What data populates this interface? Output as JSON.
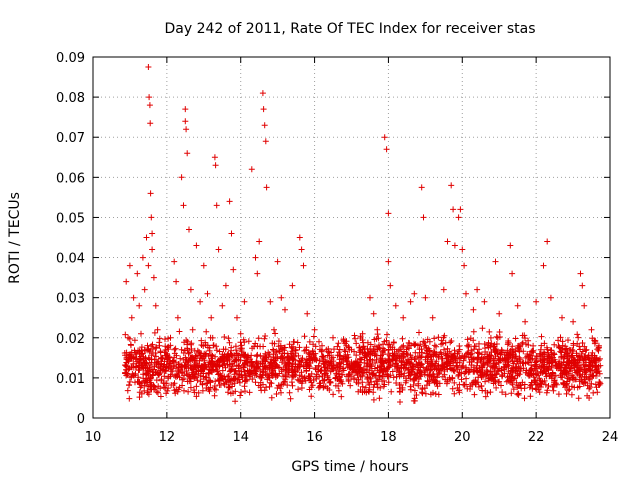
{
  "chart_data": {
    "type": "scatter",
    "title": "Day 242 of 2011, Rate Of TEC Index for receiver stas",
    "xlabel": "GPS time / hours",
    "ylabel": "ROTI / TECUs",
    "xlim": [
      10,
      24
    ],
    "ylim": [
      0,
      0.09
    ],
    "xticks": [
      10,
      12,
      14,
      16,
      18,
      20,
      22,
      24
    ],
    "xtick_labels": [
      "10",
      "12",
      "14",
      "16",
      "18",
      "20",
      "22",
      "24"
    ],
    "yticks": [
      0,
      0.01,
      0.02,
      0.03,
      0.04,
      0.05,
      0.06,
      0.07,
      0.08,
      0.09
    ],
    "ytick_labels": [
      "0",
      "0.01",
      "0.02",
      "0.03",
      "0.04",
      "0.05",
      "0.06",
      "0.07",
      "0.08",
      "0.09"
    ],
    "grid": true,
    "marker": "+",
    "color": "#e00000",
    "series": [
      {
        "points": [
          [
            10.9,
            0.034
          ],
          [
            10.9,
            0.012
          ],
          [
            10.95,
            0.02
          ],
          [
            11.0,
            0.038
          ],
          [
            11.0,
            0.009
          ],
          [
            11.05,
            0.025
          ],
          [
            11.1,
            0.03
          ],
          [
            11.1,
            0.015
          ],
          [
            11.15,
            0.011
          ],
          [
            11.2,
            0.036
          ],
          [
            11.25,
            0.028
          ],
          [
            11.3,
            0.021
          ],
          [
            11.35,
            0.04
          ],
          [
            11.4,
            0.032
          ],
          [
            11.45,
            0.045
          ],
          [
            11.5,
            0.038
          ],
          [
            11.5,
            0.0875
          ],
          [
            11.52,
            0.08
          ],
          [
            11.54,
            0.078
          ],
          [
            11.55,
            0.0735
          ],
          [
            11.56,
            0.056
          ],
          [
            11.58,
            0.05
          ],
          [
            11.6,
            0.046
          ],
          [
            11.6,
            0.042
          ],
          [
            11.65,
            0.035
          ],
          [
            11.7,
            0.028
          ],
          [
            11.75,
            0.022
          ],
          [
            11.8,
            0.018
          ],
          [
            11.85,
            0.015
          ],
          [
            11.9,
            0.012
          ],
          [
            12.0,
            0.016
          ],
          [
            12.1,
            0.02
          ],
          [
            12.2,
            0.039
          ],
          [
            12.25,
            0.034
          ],
          [
            12.3,
            0.025
          ],
          [
            12.4,
            0.06
          ],
          [
            12.45,
            0.053
          ],
          [
            12.5,
            0.077
          ],
          [
            12.5,
            0.074
          ],
          [
            12.52,
            0.072
          ],
          [
            12.55,
            0.066
          ],
          [
            12.6,
            0.047
          ],
          [
            12.65,
            0.032
          ],
          [
            12.7,
            0.022
          ],
          [
            12.8,
            0.043
          ],
          [
            12.9,
            0.029
          ],
          [
            13.0,
            0.038
          ],
          [
            13.1,
            0.031
          ],
          [
            13.2,
            0.025
          ],
          [
            13.3,
            0.065
          ],
          [
            13.32,
            0.063
          ],
          [
            13.35,
            0.053
          ],
          [
            13.4,
            0.042
          ],
          [
            13.5,
            0.028
          ],
          [
            13.6,
            0.033
          ],
          [
            13.7,
            0.054
          ],
          [
            13.75,
            0.046
          ],
          [
            13.8,
            0.037
          ],
          [
            13.9,
            0.025
          ],
          [
            14.0,
            0.021
          ],
          [
            14.1,
            0.029
          ],
          [
            14.3,
            0.062
          ],
          [
            14.4,
            0.04
          ],
          [
            14.45,
            0.036
          ],
          [
            14.5,
            0.044
          ],
          [
            14.6,
            0.081
          ],
          [
            14.62,
            0.077
          ],
          [
            14.65,
            0.073
          ],
          [
            14.68,
            0.069
          ],
          [
            14.7,
            0.0575
          ],
          [
            14.8,
            0.029
          ],
          [
            14.9,
            0.022
          ],
          [
            15.0,
            0.039
          ],
          [
            15.1,
            0.03
          ],
          [
            15.2,
            0.027
          ],
          [
            15.4,
            0.033
          ],
          [
            15.6,
            0.045
          ],
          [
            15.65,
            0.042
          ],
          [
            15.7,
            0.038
          ],
          [
            15.8,
            0.026
          ],
          [
            16.0,
            0.022
          ],
          [
            16.2,
            0.018
          ],
          [
            16.5,
            0.02
          ],
          [
            16.8,
            0.019
          ],
          [
            17.0,
            0.017
          ],
          [
            17.3,
            0.021
          ],
          [
            17.5,
            0.03
          ],
          [
            17.6,
            0.026
          ],
          [
            17.7,
            0.022
          ],
          [
            17.9,
            0.07
          ],
          [
            17.95,
            0.067
          ],
          [
            18.0,
            0.051
          ],
          [
            18.0,
            0.039
          ],
          [
            18.05,
            0.033
          ],
          [
            18.2,
            0.028
          ],
          [
            18.4,
            0.025
          ],
          [
            18.6,
            0.029
          ],
          [
            18.7,
            0.031
          ],
          [
            18.9,
            0.0575
          ],
          [
            18.95,
            0.05
          ],
          [
            19.0,
            0.03
          ],
          [
            19.2,
            0.025
          ],
          [
            19.5,
            0.032
          ],
          [
            19.6,
            0.044
          ],
          [
            19.7,
            0.058
          ],
          [
            19.75,
            0.052
          ],
          [
            19.8,
            0.043
          ],
          [
            19.9,
            0.05
          ],
          [
            19.95,
            0.052
          ],
          [
            20.0,
            0.042
          ],
          [
            20.05,
            0.038
          ],
          [
            20.1,
            0.031
          ],
          [
            20.3,
            0.027
          ],
          [
            20.4,
            0.032
          ],
          [
            20.6,
            0.029
          ],
          [
            20.9,
            0.039
          ],
          [
            21.0,
            0.026
          ],
          [
            21.3,
            0.043
          ],
          [
            21.35,
            0.036
          ],
          [
            21.5,
            0.028
          ],
          [
            21.7,
            0.024
          ],
          [
            22.0,
            0.029
          ],
          [
            22.2,
            0.038
          ],
          [
            22.3,
            0.044
          ],
          [
            22.4,
            0.03
          ],
          [
            22.7,
            0.025
          ],
          [
            23.0,
            0.024
          ],
          [
            23.2,
            0.036
          ],
          [
            23.25,
            0.033
          ],
          [
            23.3,
            0.028
          ],
          [
            23.5,
            0.022
          ],
          [
            23.7,
            0.018
          ]
        ]
      }
    ],
    "dense_band": {
      "x_range": [
        10.85,
        23.75
      ],
      "y_range": [
        0.004,
        0.022
      ],
      "center": 0.013
    }
  }
}
